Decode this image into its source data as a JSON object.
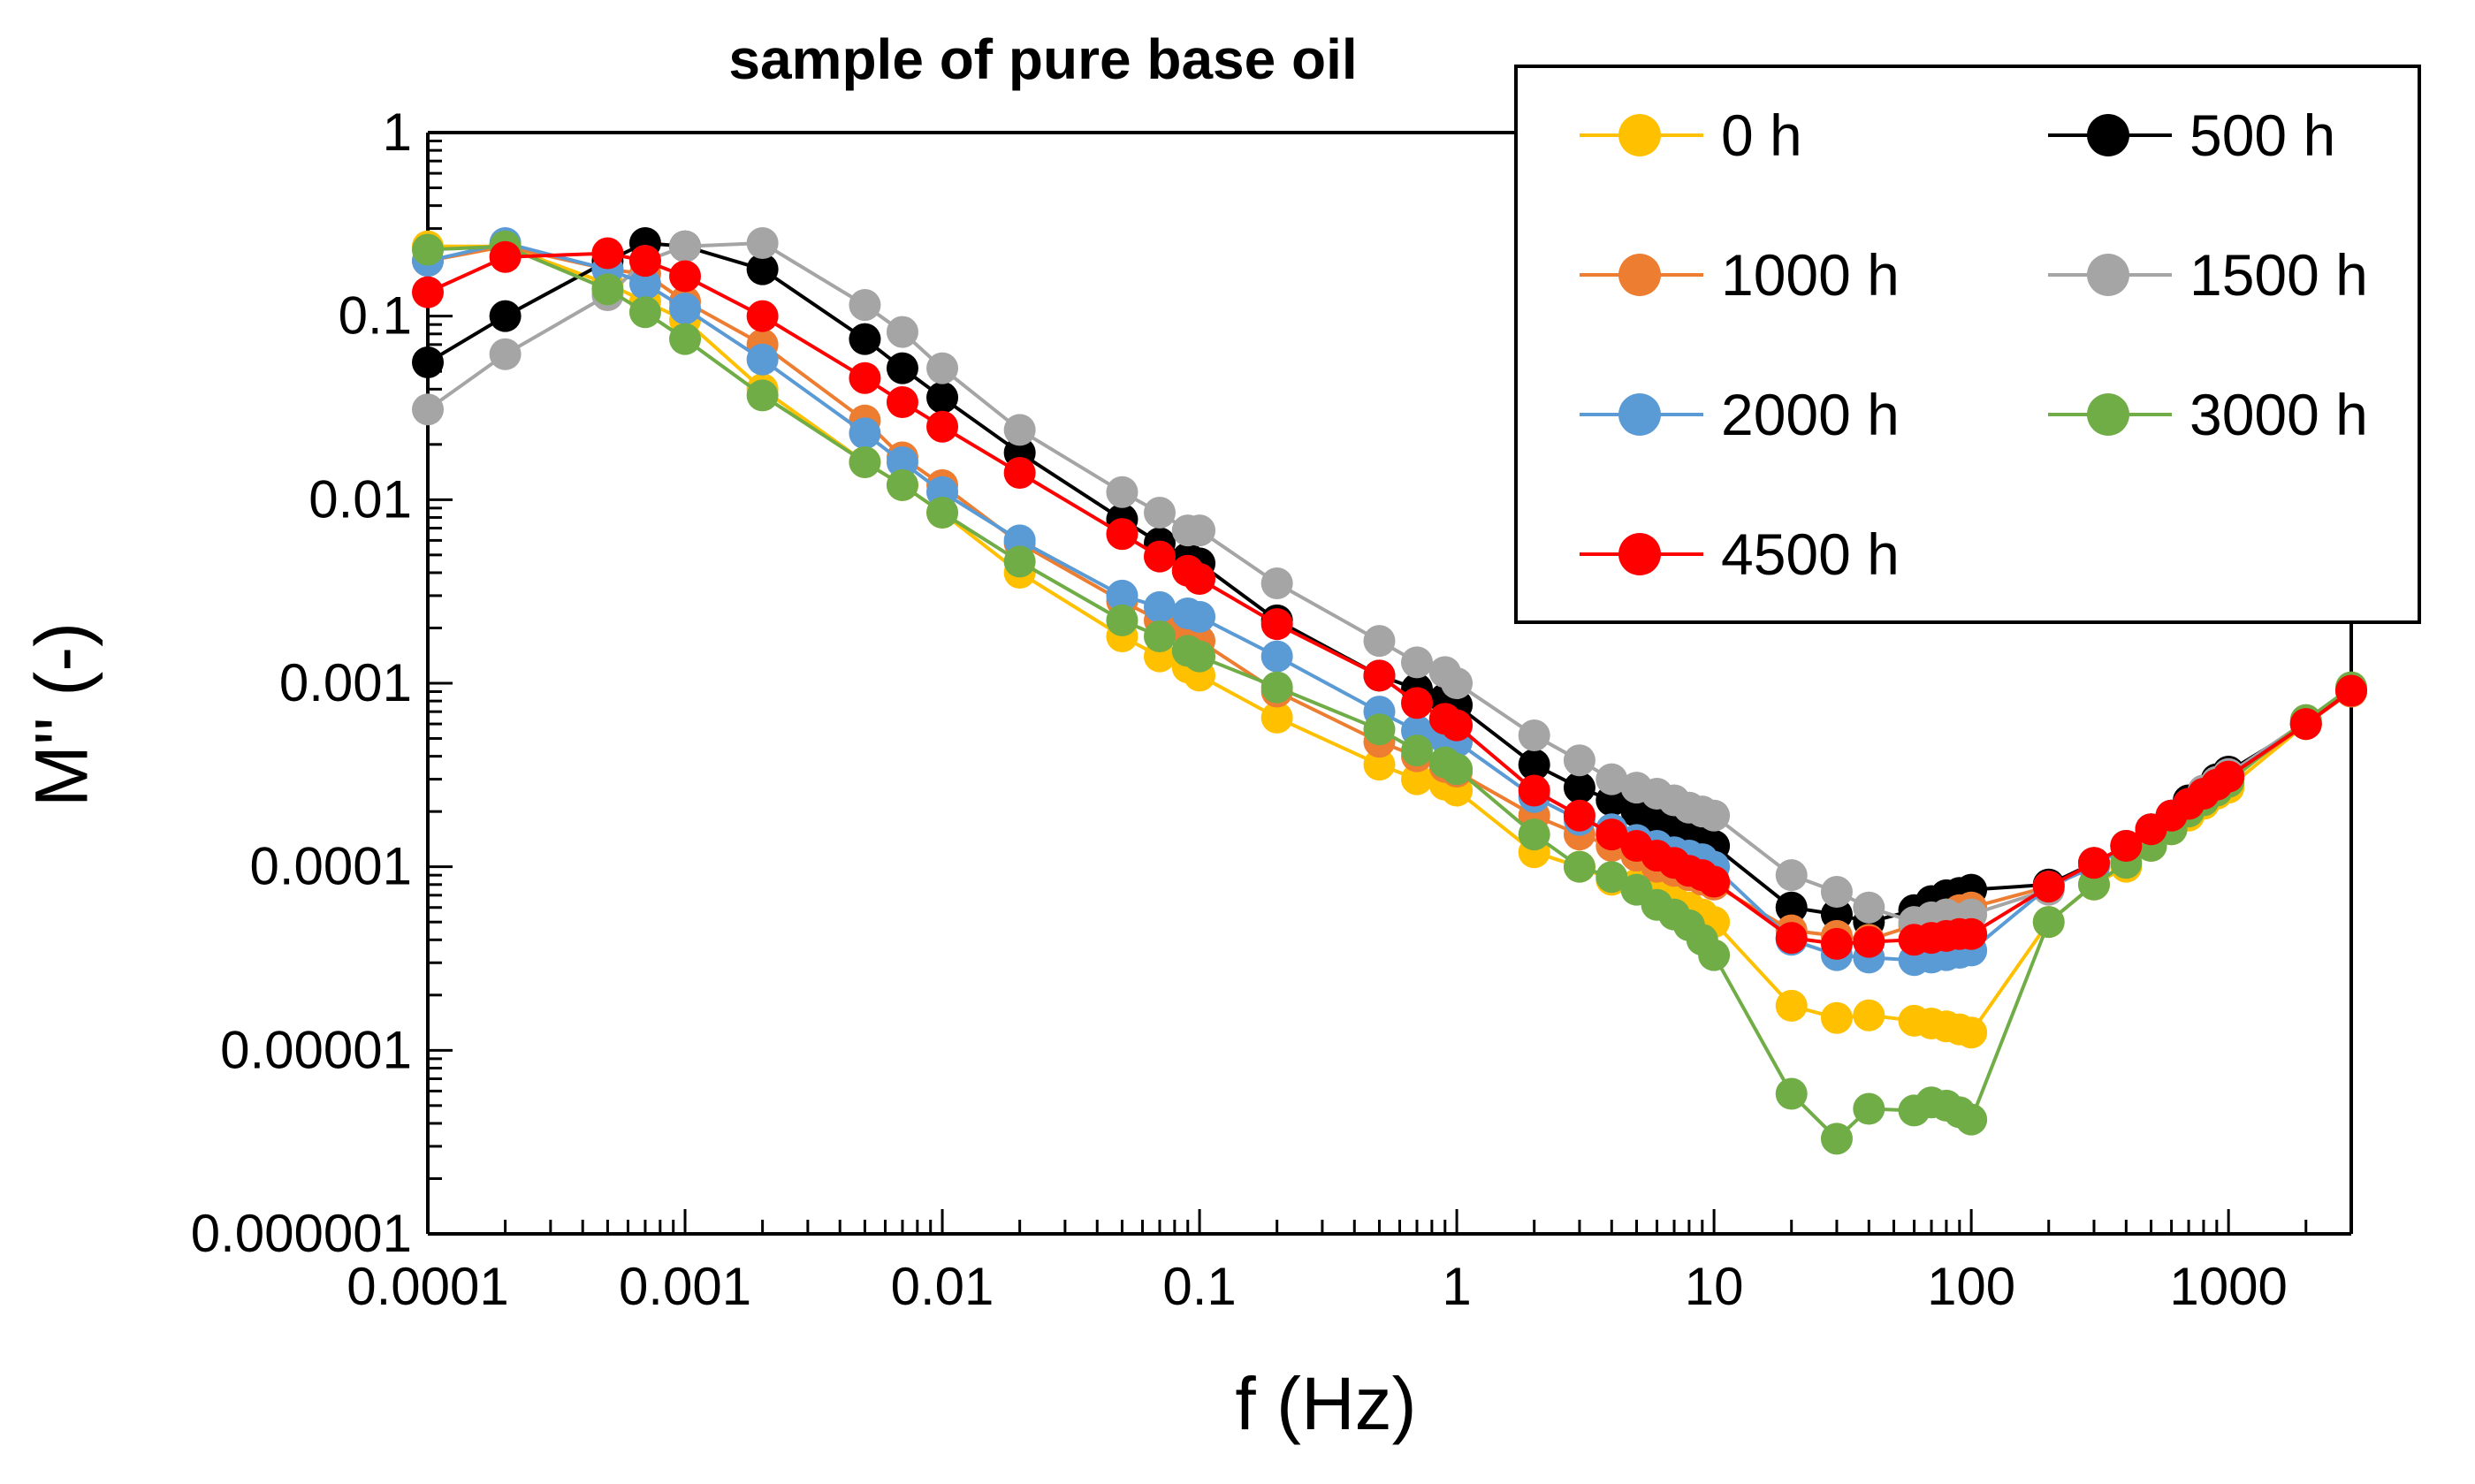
{
  "chart_data": {
    "type": "line",
    "title": "sample of pure base oil",
    "xlabel": "f (Hz)",
    "ylabel": "M'' (-)",
    "xscale": "log",
    "yscale": "log",
    "xlim": [
      0.0001,
      3000
    ],
    "ylim": [
      1e-06,
      1
    ],
    "x_tick_labels": [
      "0.0001",
      "0.001",
      "0.01",
      "0.1",
      "1",
      "10",
      "100",
      "1000"
    ],
    "y_tick_labels": [
      "1",
      "0.1",
      "0.01",
      "0.001",
      "0.0001",
      "0.00001",
      "0.000001"
    ],
    "legend_position": "top-right",
    "x": [
      0.0001,
      0.0002,
      0.0005,
      0.0007,
      0.001,
      0.002,
      0.005,
      0.007,
      0.01,
      0.02,
      0.05,
      0.07,
      0.09,
      0.1,
      0.2,
      0.5,
      0.7,
      0.9,
      1,
      2,
      3,
      4,
      5,
      6,
      7,
      8,
      9,
      10,
      20,
      30,
      40,
      60,
      70,
      80,
      90,
      100,
      200,
      300,
      400,
      500,
      600,
      700,
      800,
      900,
      1000,
      2000,
      3000
    ],
    "series": [
      {
        "name": "0 h",
        "color": "#FFC000",
        "values": [
          0.24,
          0.24,
          0.15,
          0.12,
          0.095,
          0.04,
          0.016,
          0.012,
          0.0085,
          0.004,
          0.0018,
          0.0014,
          0.00122,
          0.0011,
          0.00065,
          0.00036,
          0.0003,
          0.00028,
          0.00026,
          0.00012,
          0.0001,
          8.5e-05,
          8e-05,
          7.2e-05,
          6.5e-05,
          6e-05,
          5.5e-05,
          5e-05,
          1.75e-05,
          1.5e-05,
          1.55e-05,
          1.45e-05,
          1.4e-05,
          1.35e-05,
          1.3e-05,
          1.25e-05,
          5e-05,
          8e-05,
          0.0001,
          0.00013,
          0.00016,
          0.00019,
          0.00022,
          0.00025,
          0.00027,
          0.0006,
          0.0009
        ]
      },
      {
        "name": "500 h",
        "color": "#000000",
        "values": [
          0.056,
          0.1,
          0.2,
          0.25,
          0.24,
          0.18,
          0.075,
          0.052,
          0.036,
          0.018,
          0.0078,
          0.0058,
          0.0048,
          0.0045,
          0.0022,
          0.0011,
          0.00093,
          0.00082,
          0.00076,
          0.00036,
          0.00027,
          0.00023,
          0.0002,
          0.00018,
          0.000165,
          0.00015,
          0.00014,
          0.00013,
          6e-05,
          5.5e-05,
          5e-05,
          5.8e-05,
          6.5e-05,
          7e-05,
          7.2e-05,
          7.5e-05,
          8e-05,
          0.000105,
          0.00013,
          0.00016,
          0.00019,
          0.00023,
          0.00026,
          0.0003,
          0.00033,
          0.0006,
          0.00092
        ]
      },
      {
        "name": "1000 h",
        "color": "#ED7D31",
        "values": [
          0.2,
          0.24,
          0.18,
          0.17,
          0.12,
          0.07,
          0.027,
          0.017,
          0.012,
          0.0058,
          0.0028,
          0.0022,
          0.0019,
          0.0017,
          0.0009,
          0.00048,
          0.0004,
          0.00035,
          0.00033,
          0.00019,
          0.00015,
          0.00013,
          0.000115,
          0.0001,
          9.5e-05,
          9e-05,
          8.5e-05,
          8e-05,
          4.5e-05,
          4.2e-05,
          4e-05,
          4.8e-05,
          5e-05,
          5.5e-05,
          5.8e-05,
          6e-05,
          7.8e-05,
          0.0001,
          0.00013,
          0.00015,
          0.00018,
          0.00021,
          0.00024,
          0.00027,
          0.0003,
          0.0006,
          0.0009
        ]
      },
      {
        "name": "1500 h",
        "color": "#A5A5A5",
        "values": [
          0.031,
          0.062,
          0.13,
          0.2,
          0.24,
          0.25,
          0.115,
          0.082,
          0.052,
          0.024,
          0.011,
          0.0085,
          0.0068,
          0.0068,
          0.0035,
          0.0017,
          0.0013,
          0.00115,
          0.001,
          0.00052,
          0.00038,
          0.0003,
          0.00027,
          0.00025,
          0.00023,
          0.00021,
          0.0002,
          0.00019,
          9e-05,
          7.3e-05,
          6e-05,
          5e-05,
          5.3e-05,
          5.5e-05,
          5.2e-05,
          5.5e-05,
          7.5e-05,
          0.000105,
          0.00013,
          0.00016,
          0.00019,
          0.00022,
          0.00026,
          0.00029,
          0.00032,
          0.00062,
          0.00093
        ]
      },
      {
        "name": "2000 h",
        "color": "#5B9BD5",
        "values": [
          0.2,
          0.25,
          0.18,
          0.15,
          0.11,
          0.058,
          0.023,
          0.016,
          0.011,
          0.006,
          0.003,
          0.0026,
          0.0024,
          0.0023,
          0.0014,
          0.0007,
          0.00055,
          0.0005,
          0.00048,
          0.00024,
          0.00018,
          0.00016,
          0.00014,
          0.00013,
          0.00012,
          0.000115,
          0.00011,
          0.0001,
          4e-05,
          3.3e-05,
          3.2e-05,
          3.1e-05,
          3.2e-05,
          3.3e-05,
          3.4e-05,
          3.5e-05,
          7.8e-05,
          0.0001,
          0.00013,
          0.00016,
          0.00019,
          0.00022,
          0.00025,
          0.00028,
          0.00031,
          0.00061,
          0.00091
        ]
      },
      {
        "name": "3000 h",
        "color": "#70AD47",
        "values": [
          0.23,
          0.24,
          0.14,
          0.105,
          0.075,
          0.037,
          0.016,
          0.012,
          0.0085,
          0.0046,
          0.0022,
          0.0018,
          0.0015,
          0.0014,
          0.00095,
          0.00056,
          0.00043,
          0.00037,
          0.00034,
          0.00015,
          0.0001,
          8.8e-05,
          7.5e-05,
          6.2e-05,
          5.5e-05,
          4.8e-05,
          4e-05,
          3.3e-05,
          5.8e-06,
          3.3e-06,
          4.8e-06,
          4.7e-06,
          5.2e-06,
          5e-06,
          4.6e-06,
          4.2e-06,
          5e-05,
          8e-05,
          0.000105,
          0.00013,
          0.00016,
          0.0002,
          0.00023,
          0.00026,
          0.00029,
          0.00063,
          0.00095
        ]
      },
      {
        "name": "4500 h",
        "color": "#FF0000",
        "values": [
          0.135,
          0.21,
          0.22,
          0.2,
          0.165,
          0.1,
          0.046,
          0.034,
          0.025,
          0.014,
          0.0065,
          0.0049,
          0.0041,
          0.0037,
          0.0021,
          0.0011,
          0.00078,
          0.00064,
          0.00059,
          0.00026,
          0.00019,
          0.00015,
          0.00013,
          0.000115,
          0.000105,
          9.5e-05,
          9e-05,
          8.3e-05,
          4.1e-05,
          3.8e-05,
          3.9e-05,
          4e-05,
          4.1e-05,
          4.2e-05,
          4.3e-05,
          4.3e-05,
          7.8e-05,
          0.000105,
          0.00013,
          0.00016,
          0.00019,
          0.00022,
          0.00025,
          0.00028,
          0.00031,
          0.0006,
          0.00091
        ]
      }
    ]
  }
}
